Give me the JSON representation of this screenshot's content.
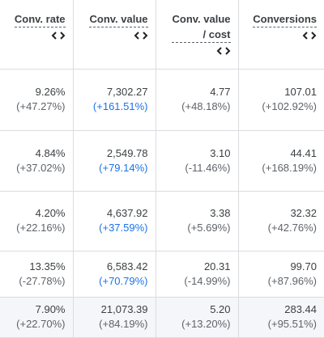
{
  "table": {
    "headers": [
      {
        "lines": [
          "Conv. rate"
        ]
      },
      {
        "lines": [
          "Conv. value"
        ]
      },
      {
        "lines": [
          "Conv. value",
          "/ cost"
        ]
      },
      {
        "lines": [
          "Conversions"
        ]
      }
    ],
    "rows": [
      [
        {
          "value": "9.26%",
          "change": "(+47.27%)"
        },
        {
          "value": "7,302.27",
          "change": "(+161.51%)",
          "change_color": "#1a73e8"
        },
        {
          "value": "4.77",
          "change": "(+48.18%)"
        },
        {
          "value": "107.01",
          "change": "(+102.92%)"
        }
      ],
      [
        {
          "value": "4.84%",
          "change": "(+37.02%)"
        },
        {
          "value": "2,549.78",
          "change": "(+79.14%)",
          "change_color": "#1a73e8"
        },
        {
          "value": "3.10",
          "change": "(-11.46%)"
        },
        {
          "value": "44.41",
          "change": "(+168.19%)"
        }
      ],
      [
        {
          "value": "4.20%",
          "change": "(+22.16%)"
        },
        {
          "value": "4,637.92",
          "change": "(+37.59%)",
          "change_color": "#1a73e8"
        },
        {
          "value": "3.38",
          "change": "(+5.69%)"
        },
        {
          "value": "32.32",
          "change": "(+42.76%)"
        }
      ],
      [
        {
          "value": "13.35%",
          "change": "(-27.78%)"
        },
        {
          "value": "6,583.42",
          "change": "(+70.79%)",
          "change_color": "#1a73e8"
        },
        {
          "value": "20.31",
          "change": "(-14.99%)"
        },
        {
          "value": "99.70",
          "change": "(+87.96%)"
        }
      ],
      [
        {
          "value": "7.90%",
          "change": "(+22.70%)"
        },
        {
          "value": "21,073.39",
          "change": "(+84.19%)"
        },
        {
          "value": "5.20",
          "change": "(+13.20%)"
        },
        {
          "value": "283.44",
          "change": "(+95.51%)"
        }
      ]
    ]
  }
}
